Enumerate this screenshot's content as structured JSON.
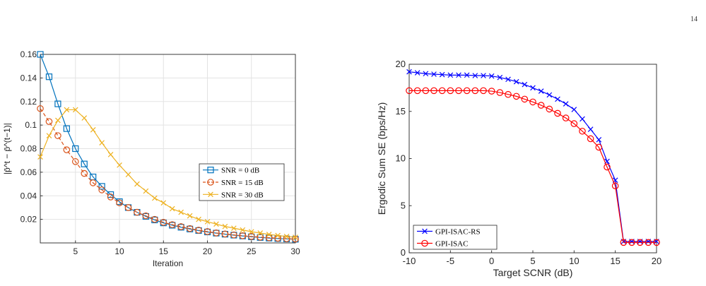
{
  "page": {
    "number": "14"
  },
  "chart_data": [
    {
      "type": "line",
      "xlabel": "Iteration",
      "ylabel": "|p̄^t − p̄^(t−1)|",
      "xlim": [
        1,
        30
      ],
      "ylim": [
        0,
        0.16
      ],
      "xticks": [
        5,
        10,
        15,
        20,
        25,
        30
      ],
      "yticks": [
        0.02,
        0.04,
        0.06,
        0.08,
        0.1,
        0.12,
        0.14,
        0.16
      ],
      "grid": true,
      "legend_position": "center-right",
      "x": [
        1,
        2,
        3,
        4,
        5,
        6,
        7,
        8,
        9,
        10,
        11,
        12,
        13,
        14,
        15,
        16,
        17,
        18,
        19,
        20,
        21,
        22,
        23,
        24,
        25,
        26,
        27,
        28,
        29,
        30
      ],
      "series": [
        {
          "name": "SNR = 0 dB",
          "color": "#0072BD",
          "marker": "square",
          "values": [
            0.16,
            0.141,
            0.118,
            0.097,
            0.08,
            0.067,
            0.056,
            0.048,
            0.041,
            0.035,
            0.03,
            0.026,
            0.0225,
            0.0195,
            0.017,
            0.015,
            0.0133,
            0.0118,
            0.0105,
            0.0093,
            0.0083,
            0.0074,
            0.0066,
            0.0059,
            0.0052,
            0.0046,
            0.0041,
            0.0037,
            0.0034,
            0.0031
          ]
        },
        {
          "name": "SNR = 15 dB",
          "color": "#D95319",
          "marker": "circle",
          "values": [
            0.114,
            0.103,
            0.091,
            0.079,
            0.069,
            0.059,
            0.051,
            0.045,
            0.039,
            0.034,
            0.03,
            0.026,
            0.023,
            0.02,
            0.0175,
            0.0155,
            0.0138,
            0.0122,
            0.0108,
            0.0096,
            0.0085,
            0.0076,
            0.0068,
            0.0061,
            0.0055,
            0.0049,
            0.0044,
            0.004,
            0.0036,
            0.0033
          ]
        },
        {
          "name": "SNR = 30 dB",
          "color": "#EDB120",
          "marker": "x",
          "values": [
            0.073,
            0.091,
            0.104,
            0.113,
            0.113,
            0.106,
            0.096,
            0.085,
            0.075,
            0.066,
            0.058,
            0.05,
            0.044,
            0.038,
            0.034,
            0.029,
            0.026,
            0.023,
            0.02,
            0.018,
            0.016,
            0.014,
            0.0125,
            0.011,
            0.0095,
            0.0084,
            0.0072,
            0.0063,
            0.0055,
            0.0048
          ]
        }
      ]
    },
    {
      "type": "line",
      "xlabel": "Target SCNR (dB)",
      "ylabel": "Ergodic Sum SE (bps/Hz)",
      "xlim": [
        -10,
        20
      ],
      "ylim": [
        0,
        20
      ],
      "xticks": [
        -10,
        -5,
        0,
        5,
        10,
        15,
        20
      ],
      "yticks": [
        0,
        5,
        10,
        15,
        20
      ],
      "grid": false,
      "legend_position": "bottom-left",
      "x": [
        -10,
        -9,
        -8,
        -7,
        -6,
        -5,
        -4,
        -3,
        -2,
        -1,
        0,
        1,
        2,
        3,
        4,
        5,
        6,
        7,
        8,
        9,
        10,
        11,
        12,
        13,
        14,
        15,
        16,
        17,
        18,
        19,
        20
      ],
      "series": [
        {
          "name": "GPI-ISAC-RS",
          "color": "#0000FF",
          "marker": "x",
          "values": [
            19.2,
            19.1,
            19.0,
            18.95,
            18.9,
            18.85,
            18.85,
            18.85,
            18.8,
            18.8,
            18.75,
            18.6,
            18.4,
            18.15,
            17.85,
            17.5,
            17.15,
            16.75,
            16.3,
            15.8,
            15.2,
            14.2,
            13.1,
            12.0,
            9.7,
            7.7,
            1.2,
            1.2,
            1.2,
            1.2,
            1.2
          ]
        },
        {
          "name": "GPI-ISAC",
          "color": "#FF0000",
          "marker": "circle",
          "values": [
            17.2,
            17.2,
            17.2,
            17.2,
            17.2,
            17.2,
            17.2,
            17.2,
            17.2,
            17.2,
            17.15,
            17.0,
            16.8,
            16.6,
            16.3,
            16.0,
            15.65,
            15.25,
            14.8,
            14.3,
            13.7,
            12.9,
            12.1,
            11.2,
            9.1,
            7.1,
            1.1,
            1.1,
            1.1,
            1.1,
            1.1
          ]
        }
      ]
    }
  ]
}
